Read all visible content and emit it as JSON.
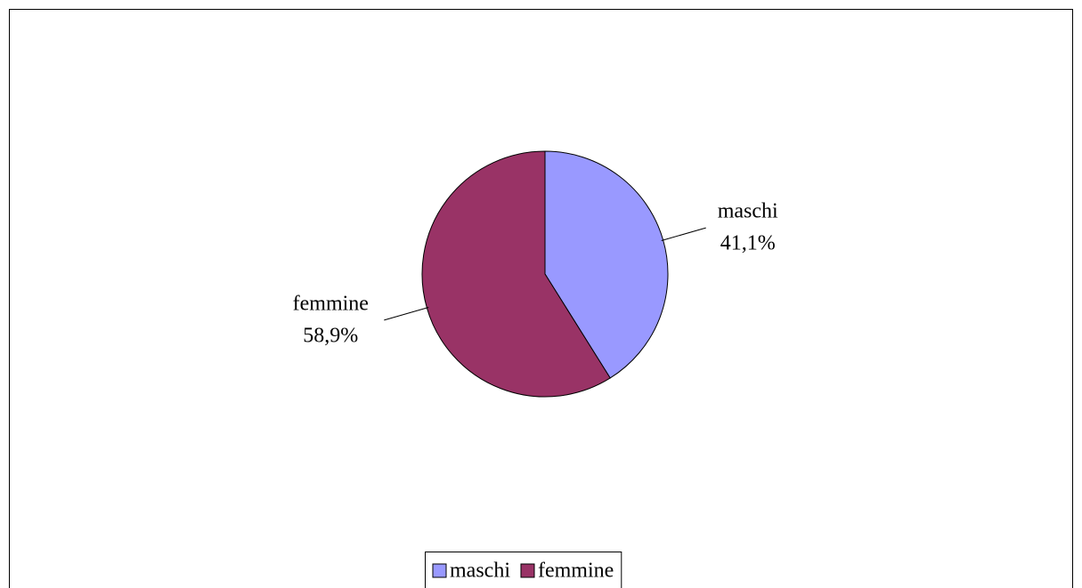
{
  "chart_data": {
    "type": "pie",
    "categories": [
      "maschi",
      "femmine"
    ],
    "values": [
      41.1,
      58.9
    ],
    "value_labels": [
      "41,1%",
      "58,9%"
    ],
    "colors": [
      "#9999ff",
      "#993366"
    ],
    "legend": "bottom"
  }
}
